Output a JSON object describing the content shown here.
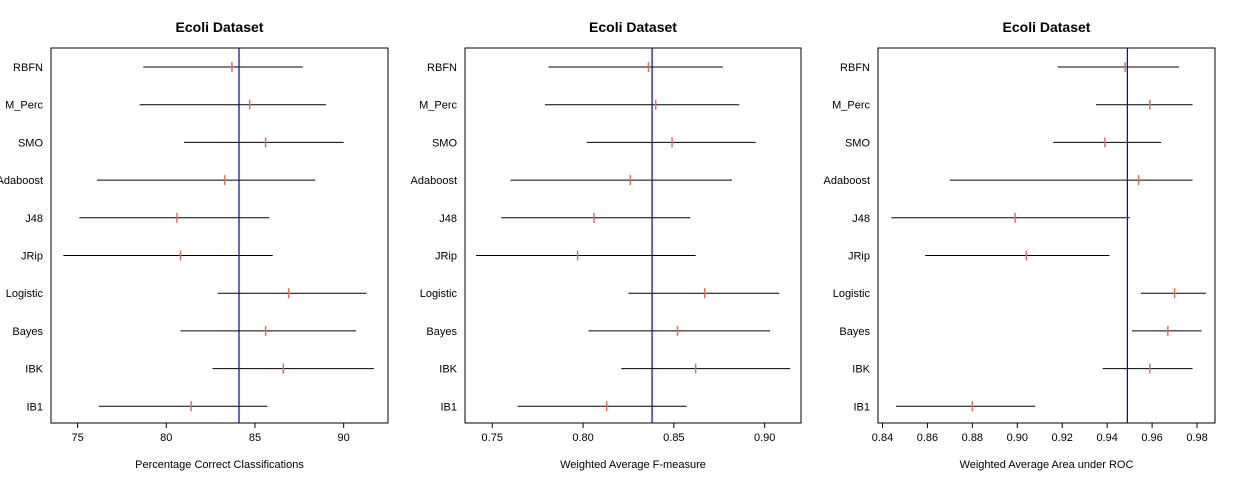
{
  "chart_data": [
    {
      "type": "dot-interval",
      "title": "Ecoli Dataset",
      "xlabel": "Percentage Correct Classifications",
      "ylabel": "",
      "categories": [
        "RBFN",
        "M_Perc",
        "SMO",
        "Adaboost",
        "J48",
        "JRip",
        "Logistic",
        "Bayes",
        "IBK",
        "IB1"
      ],
      "lower": [
        78.7,
        78.5,
        81.0,
        76.1,
        75.1,
        74.2,
        82.9,
        80.8,
        82.6,
        76.2
      ],
      "center": [
        83.7,
        84.7,
        85.6,
        83.3,
        80.6,
        80.8,
        86.9,
        85.6,
        86.6,
        81.4
      ],
      "upper": [
        87.7,
        89.0,
        90.0,
        88.4,
        85.8,
        86.0,
        91.3,
        90.7,
        91.7,
        85.7
      ],
      "reference_line": 84.1,
      "xlim": [
        73.5,
        92.5
      ],
      "xticks": [
        "75",
        "80",
        "85",
        "90"
      ],
      "xtick_values": [
        75,
        80,
        85,
        90
      ]
    },
    {
      "type": "dot-interval",
      "title": "Ecoli Dataset",
      "xlabel": "Weighted Average F-measure",
      "ylabel": "",
      "categories": [
        "RBFN",
        "M_Perc",
        "SMO",
        "Adaboost",
        "J48",
        "JRip",
        "Logistic",
        "Bayes",
        "IBK",
        "IB1"
      ],
      "lower": [
        0.781,
        0.779,
        0.802,
        0.76,
        0.755,
        0.741,
        0.825,
        0.803,
        0.821,
        0.764
      ],
      "center": [
        0.836,
        0.84,
        0.849,
        0.826,
        0.806,
        0.797,
        0.867,
        0.852,
        0.862,
        0.813
      ],
      "upper": [
        0.877,
        0.886,
        0.895,
        0.882,
        0.859,
        0.862,
        0.908,
        0.903,
        0.914,
        0.857
      ],
      "reference_line": 0.838,
      "xlim": [
        0.735,
        0.92
      ],
      "xticks": [
        "0.75",
        "0.80",
        "0.85",
        "0.90"
      ],
      "xtick_values": [
        0.75,
        0.8,
        0.85,
        0.9
      ]
    },
    {
      "type": "dot-interval",
      "title": "Ecoli Dataset",
      "xlabel": "Weighted Average Area under ROC",
      "ylabel": "",
      "categories": [
        "RBFN",
        "M_Perc",
        "SMO",
        "Adaboost",
        "J48",
        "JRip",
        "Logistic",
        "Bayes",
        "IBK",
        "IB1"
      ],
      "lower": [
        0.918,
        0.935,
        0.916,
        0.87,
        0.844,
        0.859,
        0.955,
        0.951,
        0.938,
        0.846
      ],
      "center": [
        0.948,
        0.959,
        0.939,
        0.954,
        0.899,
        0.904,
        0.97,
        0.967,
        0.959,
        0.88
      ],
      "upper": [
        0.972,
        0.978,
        0.964,
        0.978,
        0.95,
        0.941,
        0.984,
        0.982,
        0.978,
        0.908
      ],
      "reference_line": 0.949,
      "xlim": [
        0.838,
        0.988
      ],
      "xticks": [
        "0.84",
        "0.86",
        "0.88",
        "0.90",
        "0.92",
        "0.94",
        "0.96",
        "0.98"
      ],
      "xtick_values": [
        0.84,
        0.86,
        0.88,
        0.9,
        0.92,
        0.94,
        0.96,
        0.98
      ]
    }
  ],
  "colors": {
    "interval": "#000000",
    "center_mark": "#e07060",
    "reference_line": "#0000cc",
    "frame": "#000000"
  }
}
